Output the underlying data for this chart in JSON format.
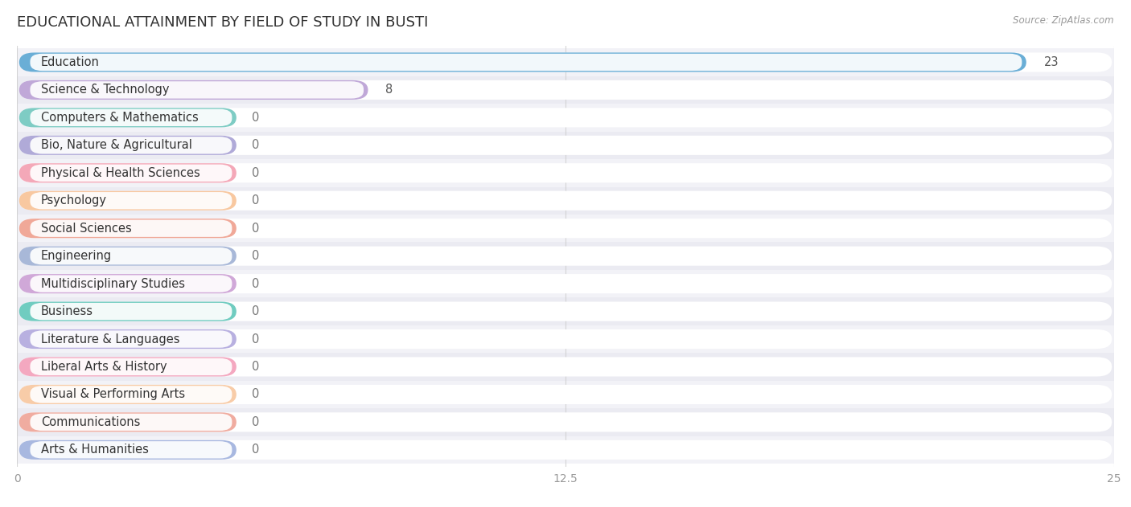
{
  "title": "EDUCATIONAL ATTAINMENT BY FIELD OF STUDY IN BUSTI",
  "source": "Source: ZipAtlas.com",
  "categories": [
    "Education",
    "Science & Technology",
    "Computers & Mathematics",
    "Bio, Nature & Agricultural",
    "Physical & Health Sciences",
    "Psychology",
    "Social Sciences",
    "Engineering",
    "Multidisciplinary Studies",
    "Business",
    "Literature & Languages",
    "Liberal Arts & History",
    "Visual & Performing Arts",
    "Communications",
    "Arts & Humanities"
  ],
  "values": [
    23,
    8,
    0,
    0,
    0,
    0,
    0,
    0,
    0,
    0,
    0,
    0,
    0,
    0,
    0
  ],
  "bar_colors": [
    "#6aaed6",
    "#c0a8d8",
    "#7eccc4",
    "#b0aad8",
    "#f4a8b8",
    "#f8c8a0",
    "#f0a898",
    "#a8b8d8",
    "#d0a8d8",
    "#70ccc0",
    "#b8b0e0",
    "#f4a8c0",
    "#f8cca8",
    "#f0aca0",
    "#a8b8e0"
  ],
  "xlim": [
    0,
    25
  ],
  "xticks": [
    0,
    12.5,
    25
  ],
  "bar_height": 0.7,
  "bg_color": "#ffffff",
  "grid_color": "#cccccc",
  "row_colors": [
    "#f2f2f7",
    "#ebebf2"
  ],
  "title_fontsize": 13,
  "label_fontsize": 10.5,
  "tick_fontsize": 10,
  "zero_bar_width": 5.0
}
